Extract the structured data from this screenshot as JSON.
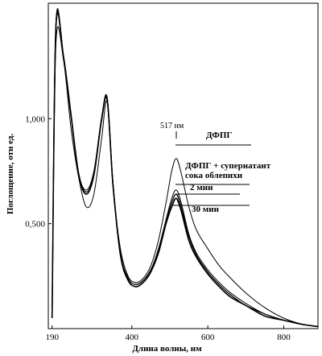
{
  "chart_data": {
    "type": "line",
    "title": "",
    "xlabel": "Длина волны, нм",
    "ylabel": "Поглощение, отн ед.",
    "xlim": [
      180,
      890
    ],
    "ylim": [
      0.0,
      1.55
    ],
    "x_ticks": [
      {
        "value": 190,
        "label": "190"
      },
      {
        "value": 400,
        "label": "400"
      },
      {
        "value": 600,
        "label": "600"
      },
      {
        "value": 800,
        "label": "800"
      }
    ],
    "y_ticks": [
      {
        "value": 1.0,
        "label": "1,000"
      },
      {
        "value": 0.5,
        "label": "0,500"
      }
    ],
    "grid": false,
    "legend": "none",
    "peak_annotation": {
      "x": 517,
      "label": "517 нм"
    },
    "series": [
      {
        "name": "ДФПГ",
        "x": [
          190,
          200,
          220,
          240,
          260,
          280,
          300,
          320,
          335,
          350,
          370,
          390,
          410,
          430,
          450,
          470,
          490,
          505,
          517,
          530,
          550,
          570,
          600,
          630,
          660,
          700,
          750,
          800,
          850,
          890
        ],
        "y": [
          0.05,
          1.35,
          1.28,
          0.95,
          0.72,
          0.58,
          0.64,
          0.9,
          1.08,
          0.68,
          0.38,
          0.25,
          0.22,
          0.24,
          0.3,
          0.42,
          0.6,
          0.75,
          0.81,
          0.74,
          0.58,
          0.47,
          0.38,
          0.3,
          0.24,
          0.17,
          0.1,
          0.05,
          0.02,
          0.01
        ]
      },
      {
        "name": "ДФПГ + супернатант сока облепихи",
        "x": [
          190,
          200,
          220,
          240,
          260,
          280,
          300,
          320,
          335,
          350,
          370,
          390,
          410,
          430,
          450,
          470,
          490,
          505,
          517,
          530,
          550,
          570,
          600,
          630,
          660,
          700,
          750,
          800,
          850,
          890
        ],
        "y": [
          0.05,
          1.45,
          1.3,
          1.02,
          0.74,
          0.66,
          0.75,
          1.0,
          1.1,
          0.7,
          0.36,
          0.24,
          0.21,
          0.23,
          0.28,
          0.38,
          0.52,
          0.62,
          0.66,
          0.6,
          0.45,
          0.36,
          0.28,
          0.22,
          0.17,
          0.12,
          0.07,
          0.04,
          0.02,
          0.01
        ]
      },
      {
        "name": "2 мин",
        "x": [
          190,
          200,
          220,
          240,
          260,
          280,
          300,
          320,
          335,
          350,
          370,
          390,
          410,
          430,
          450,
          470,
          490,
          505,
          517,
          530,
          550,
          570,
          600,
          630,
          660,
          700,
          750,
          800,
          850,
          890
        ],
        "y": [
          0.05,
          1.44,
          1.3,
          1.02,
          0.74,
          0.65,
          0.74,
          1.0,
          1.1,
          0.7,
          0.36,
          0.24,
          0.21,
          0.23,
          0.28,
          0.37,
          0.51,
          0.6,
          0.64,
          0.58,
          0.44,
          0.35,
          0.27,
          0.21,
          0.16,
          0.11,
          0.07,
          0.04,
          0.02,
          0.01
        ]
      },
      {
        "name": "30 мин",
        "x": [
          190,
          200,
          220,
          240,
          260,
          280,
          300,
          320,
          335,
          350,
          370,
          390,
          410,
          430,
          450,
          470,
          490,
          505,
          517,
          530,
          550,
          570,
          600,
          630,
          660,
          700,
          750,
          800,
          850,
          890
        ],
        "y": [
          0.05,
          1.43,
          1.29,
          1.01,
          0.73,
          0.64,
          0.73,
          0.99,
          1.09,
          0.69,
          0.35,
          0.23,
          0.2,
          0.22,
          0.27,
          0.36,
          0.5,
          0.58,
          0.62,
          0.56,
          0.42,
          0.34,
          0.26,
          0.2,
          0.15,
          0.11,
          0.06,
          0.04,
          0.02,
          0.01
        ]
      }
    ],
    "annotations": [
      {
        "text": "ДФПГ"
      },
      {
        "text": "ДФПГ + супернатант"
      },
      {
        "text": "сока облепихи"
      },
      {
        "text": "2 мин"
      },
      {
        "text": "30 мин"
      }
    ]
  }
}
